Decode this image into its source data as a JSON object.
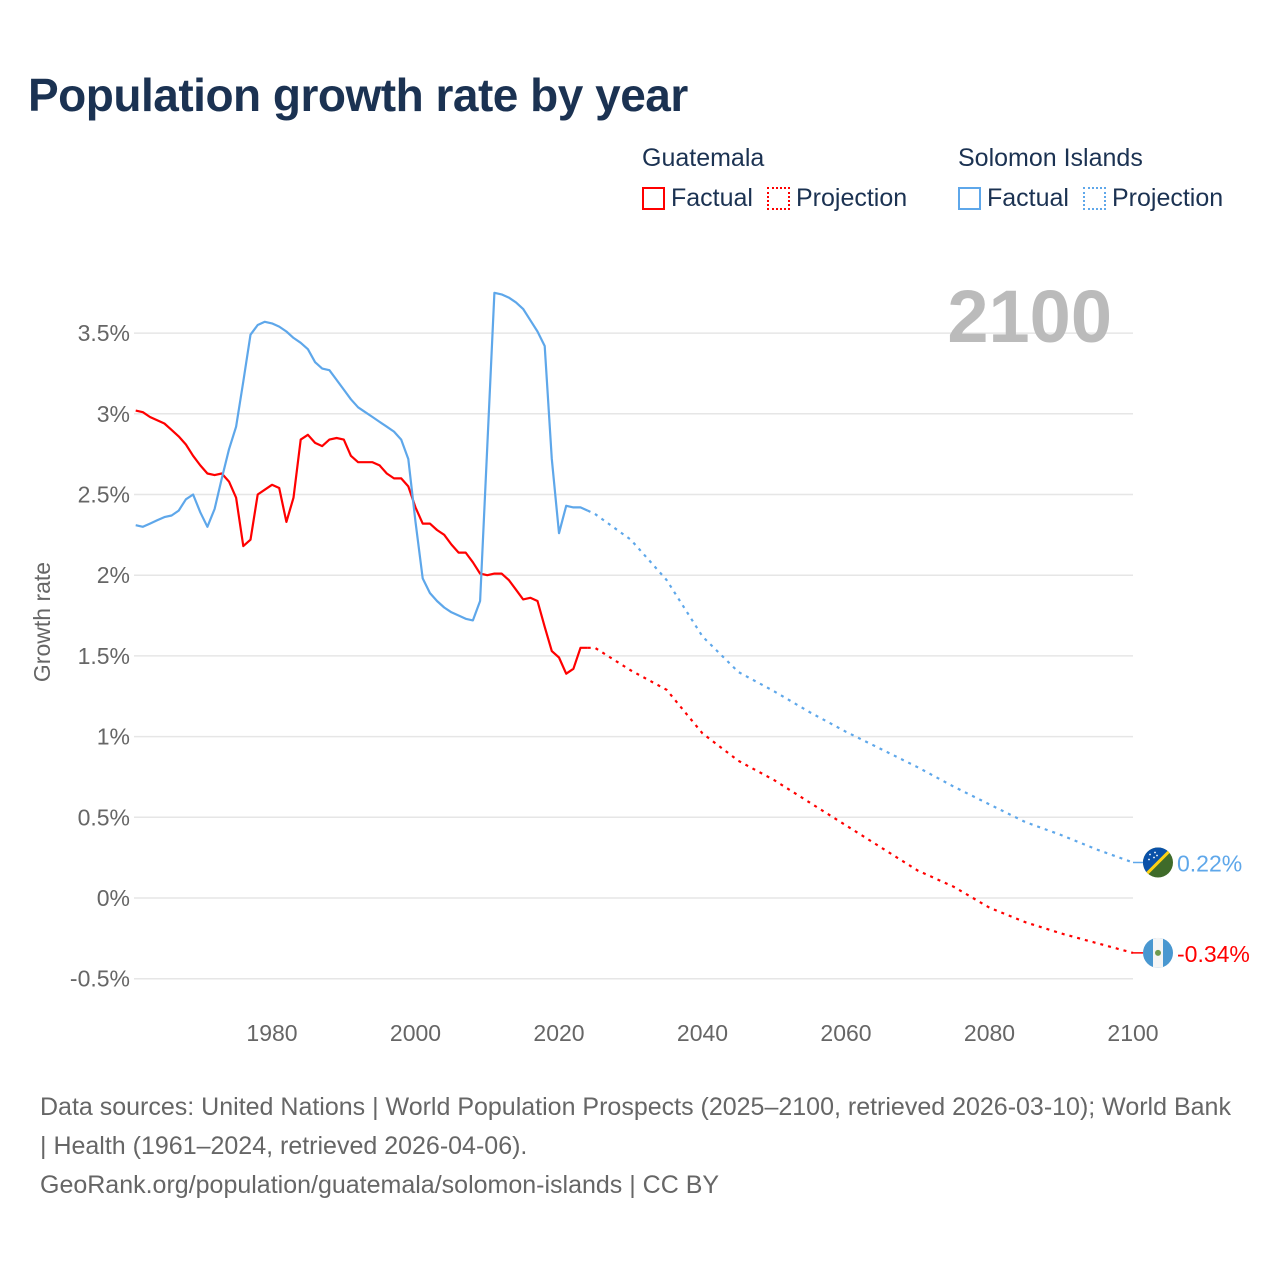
{
  "title": "Population growth rate by year",
  "legend": [
    {
      "country": "Guatemala",
      "factual": "Factual",
      "projection": "Projection",
      "color": "#ff0000"
    },
    {
      "country": "Solomon Islands",
      "factual": "Factual",
      "projection": "Projection",
      "color": "#5ea7ea"
    }
  ],
  "year_watermark": "2100",
  "footer": {
    "sources": "Data sources: United Nations | World Population Prospects (2025–2100, retrieved 2026-03-10); World Bank | Health (1961–2024, retrieved 2026-04-06).",
    "link": "GeoRank.org/population/guatemala/solomon-islands | CC BY"
  },
  "chart_data": {
    "type": "line",
    "title": "Population growth rate by year",
    "xlabel": "",
    "ylabel": "Growth rate",
    "xlim": [
      1961,
      2100
    ],
    "ylim": [
      -0.5,
      3.5
    ],
    "grid": true,
    "x_ticks": [
      "1980",
      "2000",
      "2020",
      "2040",
      "2060",
      "2080",
      "2100"
    ],
    "y_ticks": [
      "-0.5%",
      "0%",
      "0.5%",
      "1%",
      "1.5%",
      "2%",
      "2.5%",
      "3%",
      "3.5%"
    ],
    "series": [
      {
        "name": "Guatemala",
        "color": "#ff0000",
        "end_label": "-0.34%",
        "factual": {
          "x": [
            1961,
            1962,
            1963,
            1964,
            1965,
            1966,
            1967,
            1968,
            1969,
            1970,
            1971,
            1972,
            1973,
            1974,
            1975,
            1976,
            1977,
            1978,
            1979,
            1980,
            1981,
            1982,
            1983,
            1984,
            1985,
            1986,
            1987,
            1988,
            1989,
            1990,
            1991,
            1992,
            1993,
            1994,
            1995,
            1996,
            1997,
            1998,
            1999,
            2000,
            2001,
            2002,
            2003,
            2004,
            2005,
            2006,
            2007,
            2008,
            2009,
            2010,
            2011,
            2012,
            2013,
            2014,
            2015,
            2016,
            2017,
            2018,
            2019,
            2020,
            2021,
            2022,
            2023,
            2024
          ],
          "y": [
            3.02,
            3.01,
            2.98,
            2.96,
            2.94,
            2.9,
            2.86,
            2.81,
            2.74,
            2.68,
            2.63,
            2.62,
            2.63,
            2.58,
            2.48,
            2.18,
            2.22,
            2.5,
            2.53,
            2.56,
            2.54,
            2.33,
            2.48,
            2.84,
            2.87,
            2.82,
            2.8,
            2.84,
            2.85,
            2.84,
            2.74,
            2.7,
            2.7,
            2.7,
            2.68,
            2.63,
            2.6,
            2.6,
            2.55,
            2.42,
            2.32,
            2.32,
            2.28,
            2.25,
            2.19,
            2.14,
            2.14,
            2.08,
            2.01,
            2.0,
            2.01,
            2.01,
            1.97,
            1.91,
            1.85,
            1.86,
            1.84,
            1.68,
            1.53,
            1.49,
            1.39,
            1.42,
            1.55,
            1.55
          ]
        },
        "projection": {
          "x": [
            2024,
            2025,
            2030,
            2035,
            2040,
            2045,
            2050,
            2055,
            2060,
            2065,
            2070,
            2075,
            2080,
            2085,
            2090,
            2095,
            2100
          ],
          "y": [
            1.55,
            1.55,
            1.41,
            1.29,
            1.02,
            0.85,
            0.73,
            0.59,
            0.45,
            0.31,
            0.17,
            0.07,
            -0.06,
            -0.15,
            -0.22,
            -0.28,
            -0.34
          ]
        }
      },
      {
        "name": "Solomon Islands",
        "color": "#5ea7ea",
        "end_label": "0.22%",
        "factual": {
          "x": [
            1961,
            1962,
            1963,
            1964,
            1965,
            1966,
            1967,
            1968,
            1969,
            1970,
            1971,
            1972,
            1973,
            1974,
            1975,
            1976,
            1977,
            1978,
            1979,
            1980,
            1981,
            1982,
            1983,
            1984,
            1985,
            1986,
            1987,
            1988,
            1989,
            1990,
            1991,
            1992,
            1993,
            1994,
            1995,
            1996,
            1997,
            1998,
            1999,
            2000,
            2001,
            2002,
            2003,
            2004,
            2005,
            2006,
            2007,
            2008,
            2009,
            2010,
            2011,
            2012,
            2013,
            2014,
            2015,
            2016,
            2017,
            2018,
            2019,
            2020,
            2021,
            2022,
            2023,
            2024
          ],
          "y": [
            2.31,
            2.3,
            2.32,
            2.34,
            2.36,
            2.37,
            2.4,
            2.47,
            2.5,
            2.39,
            2.3,
            2.41,
            2.6,
            2.78,
            2.92,
            3.2,
            3.49,
            3.55,
            3.57,
            3.56,
            3.54,
            3.51,
            3.47,
            3.44,
            3.4,
            3.32,
            3.28,
            3.27,
            3.21,
            3.15,
            3.09,
            3.04,
            3.01,
            2.98,
            2.95,
            2.92,
            2.89,
            2.84,
            2.72,
            2.33,
            1.98,
            1.89,
            1.84,
            1.8,
            1.77,
            1.75,
            1.73,
            1.72,
            1.84,
            2.8,
            3.75,
            3.74,
            3.72,
            3.69,
            3.65,
            3.58,
            3.51,
            3.42,
            2.72,
            2.26,
            2.43,
            2.42,
            2.42,
            2.4
          ]
        },
        "projection": {
          "x": [
            2024,
            2025,
            2030,
            2035,
            2040,
            2045,
            2050,
            2055,
            2060,
            2065,
            2070,
            2075,
            2080,
            2085,
            2090,
            2095,
            2100
          ],
          "y": [
            2.4,
            2.38,
            2.22,
            1.97,
            1.62,
            1.4,
            1.28,
            1.15,
            1.03,
            0.92,
            0.81,
            0.69,
            0.58,
            0.47,
            0.39,
            0.3,
            0.22
          ]
        }
      }
    ]
  }
}
